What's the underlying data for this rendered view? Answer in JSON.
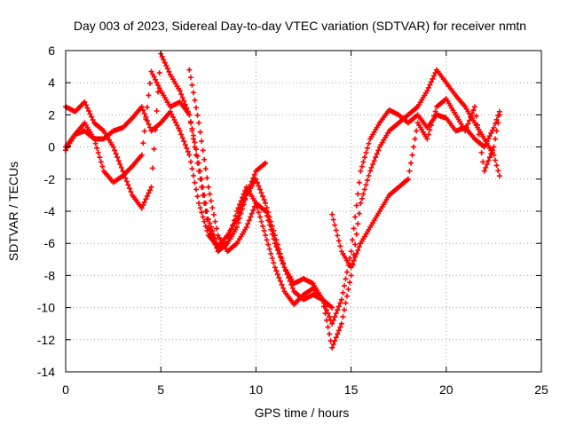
{
  "chart_data": {
    "type": "scatter",
    "title": "Day 003 of 2023, Sidereal Day-to-day VTEC variation (SDTVAR) for receiver nmtn",
    "xlabel": "GPS time / hours",
    "ylabel": "SDTVAR / TECUs",
    "xlim": [
      0,
      25
    ],
    "ylim": [
      -14,
      6
    ],
    "xticks": [
      "0",
      "5",
      "10",
      "15",
      "20",
      "25"
    ],
    "yticks": [
      "-14",
      "-12",
      "-10",
      "-8",
      "-6",
      "-4",
      "-2",
      "0",
      "2",
      "4",
      "6"
    ],
    "grid": true,
    "marker": "+",
    "color": "#ff0000",
    "series": [
      {
        "x": [
          0,
          0.5,
          1,
          1.5,
          2,
          2.5,
          3,
          3.5,
          4,
          4.5,
          5,
          5.5,
          6,
          6.5,
          7,
          7.5,
          8,
          8.5,
          9,
          9.5,
          10,
          10.5
        ],
        "y": [
          0,
          0.8,
          1.0,
          0.5,
          0.5,
          1.0,
          1.2,
          1.8,
          2.5,
          1.0,
          1.5,
          2.2,
          1.0,
          -0.5,
          -3.5,
          -5.5,
          -6.2,
          -5.5,
          -4.5,
          -3.0,
          -1.5,
          -1.0
        ]
      },
      {
        "x": [
          0,
          0.5,
          1,
          1.5,
          2,
          2.5,
          3,
          3.5,
          4,
          4.5,
          5,
          5.5,
          6,
          6.5,
          7,
          7.5,
          8,
          8.5,
          9,
          9.5,
          10,
          10.5,
          11,
          11.5,
          12,
          12.5,
          13,
          13.5,
          14
        ],
        "y": [
          -0.2,
          0.8,
          1.5,
          0.5,
          -1.5,
          -2.2,
          -1.8,
          -1.2,
          -0.5,
          4.7,
          3.5,
          2.5,
          2.8,
          2.0,
          -1.0,
          -4.5,
          -6.2,
          -6.0,
          -5.0,
          -3.0,
          -2.0,
          -3.5,
          -5.5,
          -7.5,
          -9.0,
          -9.5,
          -9.2,
          -9.5,
          -10.0
        ]
      },
      {
        "x": [
          0,
          0.5,
          1,
          1.5,
          2,
          2.5,
          3,
          3.5,
          4,
          4.5,
          5,
          5.5,
          6,
          6.5,
          7,
          7.5,
          8,
          8.5,
          9,
          9.5,
          10,
          10.5,
          11,
          11.5,
          12,
          12.5,
          13,
          13.5,
          14,
          14.5,
          15,
          15.5,
          16,
          16.5,
          17,
          17.5,
          18,
          18.5,
          19,
          19.5,
          20,
          20.5,
          21,
          21.5,
          22,
          22.5,
          22.8
        ],
        "y": [
          2.5,
          2.2,
          2.8,
          1.5,
          1.0,
          0.0,
          -1.5,
          -3.0,
          -3.8,
          -2.5,
          5.8,
          4.5,
          3.5,
          2.0,
          -1.5,
          -5.0,
          -6.5,
          -6.0,
          -4.0,
          -2.5,
          -3.5,
          -5.5,
          -7.5,
          -9.0,
          -9.8,
          -9.2,
          -8.8,
          -9.5,
          -11.0,
          -9.5,
          -6.5,
          -1.5,
          0.5,
          1.5,
          2.3,
          2.0,
          1.5,
          2.0,
          1.2,
          2.0,
          1.8,
          1.0,
          1.2,
          0.5,
          0.0,
          1.2,
          2.2
        ]
      },
      {
        "x": [
          6.5,
          7,
          7.5,
          8,
          8.5,
          9,
          9.5,
          10,
          10.5,
          11,
          11.5,
          12,
          12.5,
          13,
          13.5,
          14,
          14.5,
          15,
          15.5,
          16,
          16.5,
          17,
          17.5,
          18,
          18.5,
          19,
          19.5,
          20,
          20.5,
          21,
          21.5,
          22,
          22.5,
          22.8
        ],
        "y": [
          4.8,
          1.5,
          -2.5,
          -5.5,
          -6.5,
          -6.0,
          -5.0,
          -3.5,
          -4.0,
          -6.0,
          -7.5,
          -8.5,
          -8.2,
          -8.5,
          -9.5,
          -12.5,
          -11.0,
          -8.0,
          -3.5,
          -1.5,
          0.0,
          1.0,
          1.5,
          2.0,
          2.5,
          3.5,
          4.8,
          4.0,
          3.2,
          2.5,
          1.5,
          0.5,
          -0.5,
          -1.8
        ]
      },
      {
        "x": [
          14,
          14.5,
          15,
          15.5,
          16,
          16.5,
          17,
          17.5,
          18,
          18.5,
          19,
          19.5,
          20,
          20.5,
          21,
          21.5,
          22,
          22.5,
          22.8
        ],
        "y": [
          -4.2,
          -6.5,
          -7.5,
          -6.0,
          -5.0,
          -4.0,
          -3.0,
          -2.5,
          -2.0,
          1.5,
          0.5,
          2.5,
          3.0,
          2.0,
          1.0,
          2.5,
          -1.5,
          0.0,
          2.0
        ]
      }
    ]
  }
}
